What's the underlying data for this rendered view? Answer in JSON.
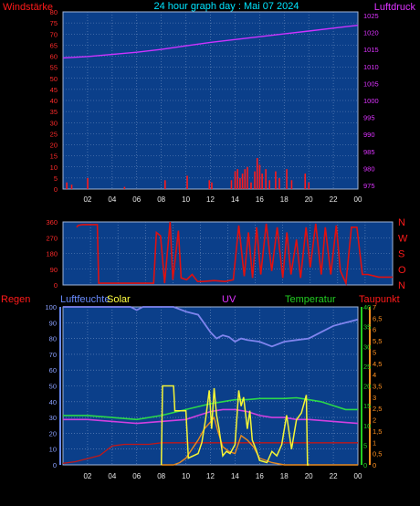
{
  "top_chart": {
    "title": "24 hour graph day : Mai 07 2024",
    "left_label": "Windstärke",
    "right_label": "Luftdruck",
    "left_ticks": [
      "0",
      "5",
      "10",
      "15",
      "20",
      "25",
      "30",
      "35",
      "40",
      "45",
      "50",
      "55",
      "60",
      "65",
      "70",
      "75",
      "80"
    ],
    "right_ticks": [
      "975",
      "980",
      "985",
      "990",
      "995",
      "1000",
      "1005",
      "1010",
      "1015",
      "1020",
      "1025"
    ],
    "x_ticks": [
      "02",
      "04",
      "06",
      "08",
      "10",
      "12",
      "14",
      "16",
      "18",
      "20",
      "22",
      "00"
    ]
  },
  "mid_chart": {
    "left_ticks": [
      "0",
      "90",
      "180",
      "270",
      "360"
    ],
    "direction_labels": [
      "N",
      "W",
      "S",
      "O",
      "N"
    ]
  },
  "bottom_chart": {
    "labels": {
      "rain": "Regen",
      "humidity": "Luftfeuchte",
      "solar": "Solar",
      "uv": "UV",
      "temperature": "Temperatur",
      "dewpoint": "Taupunkt"
    },
    "left_ticks": [
      "0",
      "10",
      "20",
      "30",
      "40",
      "50",
      "60",
      "70",
      "80",
      "90",
      "100"
    ],
    "temp_ticks": [
      "0",
      "5",
      "10",
      "15",
      "20",
      "25",
      "30",
      "35",
      "40"
    ],
    "dew_ticks": [
      "0",
      "0,5",
      "1",
      "1,5",
      "2",
      "2,5",
      "3",
      "3,5",
      "4",
      "4,5",
      "5",
      "5,5",
      "6",
      "6,5",
      "7"
    ],
    "x_ticks": [
      "02",
      "04",
      "06",
      "08",
      "10",
      "12",
      "14",
      "16",
      "18",
      "20",
      "22",
      "00"
    ]
  },
  "colors": {
    "panel": "#0b3f8a",
    "grid": "#6f8fc0",
    "wind": "#ff1a1a",
    "pressure": "#cc33ff",
    "direction": "#e01010",
    "humidity": "#7f84ee",
    "temperature": "#2bd84a",
    "solar": "#f5f535",
    "uv": "#e88a20",
    "dewpoint_line": "#d040e0",
    "rain": "#c01818",
    "title": "#00e5ff",
    "dew_label": "#ff1a1a",
    "dew_tick": "#ff9020",
    "temp_label": "#22cc22",
    "uv_label": "#dd33ff",
    "solar_label": "#ffff40",
    "humidity_label": "#6a8cff"
  },
  "chart_data": [
    {
      "type": "line",
      "title": "24 hour graph day : Mai 07 2024",
      "x_range_hours": [
        0,
        24
      ],
      "series": [
        {
          "name": "Luftdruck",
          "axis": "right",
          "ylim": [
            975,
            1025
          ],
          "points": [
            [
              0,
              1012
            ],
            [
              2,
              1012.4
            ],
            [
              4,
              1013
            ],
            [
              6,
              1013.6
            ],
            [
              8,
              1014.4
            ],
            [
              10,
              1015.4
            ],
            [
              12,
              1016.4
            ],
            [
              14,
              1017.2
            ],
            [
              16,
              1018
            ],
            [
              18,
              1018.8
            ],
            [
              20,
              1019.6
            ],
            [
              22,
              1020.4
            ],
            [
              24,
              1021.2
            ]
          ]
        },
        {
          "name": "Windstärke",
          "axis": "left",
          "ylim": [
            0,
            80
          ],
          "style": "bars",
          "bars": [
            [
              0.3,
              3
            ],
            [
              0.7,
              2
            ],
            [
              2,
              5
            ],
            [
              5,
              1
            ],
            [
              8.3,
              4
            ],
            [
              10.1,
              6
            ],
            [
              11.9,
              4
            ],
            [
              12.1,
              3
            ],
            [
              13.7,
              4
            ],
            [
              14,
              8
            ],
            [
              14.2,
              9
            ],
            [
              14.4,
              5
            ],
            [
              14.6,
              7
            ],
            [
              14.8,
              9
            ],
            [
              15,
              10
            ],
            [
              15.3,
              3
            ],
            [
              15.6,
              8
            ],
            [
              15.8,
              14
            ],
            [
              16,
              11
            ],
            [
              16.2,
              7
            ],
            [
              16.5,
              9
            ],
            [
              16.8,
              4
            ],
            [
              17.3,
              8
            ],
            [
              17.6,
              5
            ],
            [
              18.2,
              9
            ],
            [
              18.6,
              4
            ],
            [
              19.7,
              7
            ],
            [
              20,
              3
            ]
          ]
        }
      ]
    },
    {
      "type": "line",
      "ylim": [
        0,
        360
      ],
      "series": [
        {
          "name": "Windrichtung",
          "points": [
            [
              1,
              330
            ],
            [
              1.1,
              340
            ],
            [
              1.4,
              345
            ],
            [
              2.5,
              345
            ],
            [
              2.6,
              10
            ],
            [
              6.6,
              10
            ],
            [
              6.8,
              300
            ],
            [
              7.1,
              280
            ],
            [
              7.4,
              10
            ],
            [
              7.8,
              360
            ],
            [
              8,
              30
            ],
            [
              8.4,
              310
            ],
            [
              8.6,
              40
            ],
            [
              9,
              30
            ],
            [
              9.4,
              60
            ],
            [
              9.8,
              20
            ],
            [
              10.2,
              20
            ],
            [
              11,
              25
            ],
            [
              11.8,
              20
            ],
            [
              12.4,
              30
            ],
            [
              12.8,
              340
            ],
            [
              13.2,
              50
            ],
            [
              13.5,
              300
            ],
            [
              13.8,
              40
            ],
            [
              14.1,
              330
            ],
            [
              14.4,
              60
            ],
            [
              14.8,
              350
            ],
            [
              15.2,
              80
            ],
            [
              15.6,
              330
            ],
            [
              16,
              40
            ],
            [
              16.3,
              300
            ],
            [
              16.6,
              60
            ],
            [
              17,
              260
            ],
            [
              17.3,
              40
            ],
            [
              17.7,
              330
            ],
            [
              18,
              100
            ],
            [
              18.4,
              350
            ],
            [
              18.8,
              60
            ],
            [
              19.1,
              330
            ],
            [
              19.5,
              60
            ],
            [
              19.9,
              340
            ],
            [
              20.2,
              80
            ],
            [
              20.6,
              10
            ],
            [
              21,
              330
            ],
            [
              21.4,
              330
            ],
            [
              21.8,
              60
            ],
            [
              22.2,
              60
            ],
            [
              23,
              45
            ],
            [
              24,
              45
            ]
          ]
        }
      ]
    },
    {
      "type": "line",
      "series": [
        {
          "name": "Luftfeuchte",
          "axis": "left",
          "ylim": [
            0,
            100
          ],
          "points": [
            [
              0,
              100
            ],
            [
              2,
              100
            ],
            [
              4,
              100
            ],
            [
              5,
              100
            ],
            [
              5.5,
              100
            ],
            [
              6,
              98
            ],
            [
              6.5,
              100
            ],
            [
              9,
              100
            ],
            [
              10,
              97
            ],
            [
              11,
              95
            ],
            [
              12,
              84
            ],
            [
              12.5,
              80
            ],
            [
              13,
              82
            ],
            [
              13.5,
              81
            ],
            [
              14,
              78
            ],
            [
              14.5,
              80
            ],
            [
              15,
              79
            ],
            [
              16,
              78
            ],
            [
              17,
              75
            ],
            [
              18,
              78
            ],
            [
              19,
              79
            ],
            [
              20,
              80
            ],
            [
              21,
              84
            ],
            [
              22,
              88
            ],
            [
              23,
              90
            ],
            [
              24,
              92
            ]
          ]
        },
        {
          "name": "Temperatur",
          "axis": "temp",
          "ylim": [
            0,
            40
          ],
          "points": [
            [
              0,
              12.5
            ],
            [
              2,
              12.5
            ],
            [
              4,
              12
            ],
            [
              6,
              11.5
            ],
            [
              8,
              12.5
            ],
            [
              10,
              14
            ],
            [
              12,
              15.5
            ],
            [
              13,
              16
            ],
            [
              14,
              16.5
            ],
            [
              15,
              16.5
            ],
            [
              16,
              16.8
            ],
            [
              17,
              16.8
            ],
            [
              18,
              16.8
            ],
            [
              19,
              17
            ],
            [
              20,
              16.5
            ],
            [
              21,
              16
            ],
            [
              22,
              15
            ],
            [
              23,
              14
            ],
            [
              24,
              14
            ]
          ]
        },
        {
          "name": "Taupunkt",
          "axis": "temp",
          "ylim": [
            0,
            40
          ],
          "points": [
            [
              0,
              11.5
            ],
            [
              2,
              11.5
            ],
            [
              4,
              11
            ],
            [
              6,
              10.5
            ],
            [
              8,
              11
            ],
            [
              10,
              11.5
            ],
            [
              11,
              12.5
            ],
            [
              12,
              13.5
            ],
            [
              13,
              14
            ],
            [
              14,
              14
            ],
            [
              15,
              13.5
            ],
            [
              16,
              12.5
            ],
            [
              17,
              12
            ],
            [
              18,
              12
            ],
            [
              19,
              11.5
            ],
            [
              20,
              11.5
            ],
            [
              22,
              11
            ],
            [
              24,
              10.5
            ]
          ]
        },
        {
          "name": "Solar",
          "axis": "dew",
          "ylim": [
            0,
            7
          ],
          "points": [
            [
              8,
              0
            ],
            [
              8.1,
              3.5
            ],
            [
              9,
              3.5
            ],
            [
              9.1,
              2.4
            ],
            [
              10,
              2.4
            ],
            [
              10.2,
              0.3
            ],
            [
              11,
              0.5
            ],
            [
              11.3,
              1
            ],
            [
              11.6,
              2
            ],
            [
              11.9,
              3.3
            ],
            [
              12.1,
              1.6
            ],
            [
              12.3,
              3.4
            ],
            [
              12.5,
              2.2
            ],
            [
              12.7,
              1.6
            ],
            [
              13,
              0.4
            ],
            [
              13.3,
              0.6
            ],
            [
              13.6,
              0.5
            ],
            [
              14,
              0.9
            ],
            [
              14.3,
              3.3
            ],
            [
              14.5,
              2.6
            ],
            [
              14.7,
              3
            ],
            [
              15,
              1.6
            ],
            [
              15.2,
              2.4
            ],
            [
              15.4,
              1.1
            ],
            [
              15.7,
              0.7
            ],
            [
              16,
              0.2
            ],
            [
              16.6,
              0.1
            ],
            [
              17,
              0.6
            ],
            [
              17.4,
              0.4
            ],
            [
              17.8,
              0.9
            ],
            [
              18.2,
              2.2
            ],
            [
              18.6,
              0.7
            ],
            [
              19,
              2
            ],
            [
              19.4,
              2.3
            ],
            [
              19.8,
              3.1
            ],
            [
              19.9,
              0
            ],
            [
              20,
              0
            ]
          ]
        },
        {
          "name": "UV",
          "axis": "dew",
          "ylim": [
            0,
            7
          ],
          "points": [
            [
              8,
              0
            ],
            [
              9,
              0
            ],
            [
              9.5,
              0.1
            ],
            [
              10,
              0.3
            ],
            [
              10.5,
              0.7
            ],
            [
              11,
              1.1
            ],
            [
              11.5,
              1.6
            ],
            [
              12,
              1.9
            ],
            [
              12.3,
              2.1
            ],
            [
              12.6,
              1.5
            ],
            [
              13,
              0.8
            ],
            [
              13.5,
              0.6
            ],
            [
              14,
              0.5
            ],
            [
              14.5,
              1.3
            ],
            [
              15,
              1.1
            ],
            [
              15.5,
              0.8
            ],
            [
              16,
              0.3
            ],
            [
              17,
              0.1
            ],
            [
              18,
              0
            ],
            [
              24,
              0
            ]
          ]
        },
        {
          "name": "Regen",
          "axis": "left",
          "ylim": [
            0,
            100
          ],
          "points": [
            [
              0,
              1
            ],
            [
              1,
              2
            ],
            [
              2,
              4
            ],
            [
              3,
              6
            ],
            [
              4,
              12
            ],
            [
              5,
              13
            ],
            [
              6,
              13
            ],
            [
              7,
              13
            ],
            [
              8,
              14
            ],
            [
              9,
              14
            ],
            [
              10,
              14
            ],
            [
              12,
              14
            ],
            [
              14,
              14
            ],
            [
              16,
              14
            ],
            [
              18,
              14
            ],
            [
              20,
              14
            ],
            [
              22,
              14
            ],
            [
              24,
              14
            ]
          ]
        }
      ]
    }
  ]
}
